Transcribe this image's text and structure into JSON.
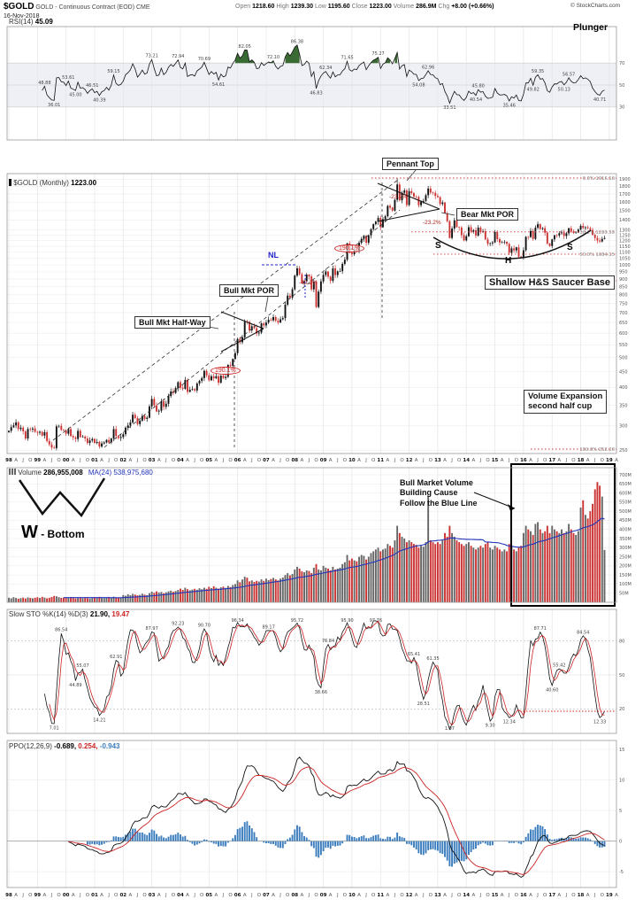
{
  "header": {
    "symbol": "$GOLD",
    "description": "GOLD - Continuous Contract (EOD) CME",
    "date": "16-Nov-2018",
    "open_label": "Open",
    "open": "1218.60",
    "high_label": "High",
    "high": "1239.30",
    "low_label": "Low",
    "low": "1195.60",
    "close_label": "Close",
    "close": "1223.00",
    "volume_label": "Volume",
    "volume": "286.9M",
    "chg_label": "Chg",
    "chg": "+8.00 (+0.66%)",
    "copyright": "© StockCharts.com",
    "author": "Plunger"
  },
  "panel_titles": {
    "rsi_label": "RSI(14)",
    "rsi_value": "45.09",
    "price_label": "$GOLD (Monthly)",
    "price_value": "1223.00",
    "volume_label": "Volume",
    "volume_value": "286,955,008",
    "volume_ma_label": "MA(24)",
    "volume_ma_value": "538,975,680",
    "sto_label": "Slow STO %K(14) %D(3)",
    "sto_k": "21.90,",
    "sto_d": "19.47",
    "ppo_label": "PPO(12,26,9)",
    "ppo_1": "-0.689,",
    "ppo_2": "0.254,",
    "ppo_3": "-0.943"
  },
  "annotations": {
    "pennant_top": "Pennant Top",
    "bear_mkt_por": "Bear Mkt POR",
    "bull_mkt_por": "Bull Mkt POR",
    "bull_mkt_halfway": "Bull Mkt Half-Way",
    "saucer_base": "Shallow H&S Saucer Base",
    "vol_exp_line1": "Volume Expansion",
    "vol_exp_line2": "second half cup",
    "bullvol_line1": "Bull Market Volume",
    "bullvol_line2": "Building Cause",
    "bullvol_line3": "Follow the Blue Line",
    "w_letter": "W",
    "w_rest": " - Bottom",
    "nl": "NL",
    "meas_1": "190.1%",
    "meas_2": "190.1%",
    "retr_1": "-23.2%",
    "retr_2": "-23.2%",
    "retr_3": "-40.2%",
    "s_left": "S",
    "head": "H",
    "s_right": "S"
  },
  "chart_data": [
    {
      "panel": "rsi",
      "type": "line",
      "label": "RSI(14)",
      "current": 45.09,
      "overbought": 70,
      "midline": 50,
      "oversold": 30,
      "yticks": [
        70,
        50,
        30
      ],
      "derived": "RSI(14) computed from the monthly closes of the price panel"
    },
    {
      "panel": "price",
      "type": "candlestick",
      "label": "$GOLD Monthly",
      "scale": "log",
      "frequency": "monthly",
      "start": "1998-01",
      "end": "2018-11",
      "last_close": 1223.0,
      "closes": [
        289,
        297,
        301,
        308,
        293,
        296,
        288,
        273,
        293,
        292,
        294,
        287,
        285,
        287,
        279,
        286,
        268,
        261,
        255,
        254,
        299,
        300,
        291,
        290,
        283,
        293,
        278,
        275,
        272,
        289,
        276,
        277,
        273,
        264,
        269,
        272,
        264,
        266,
        257,
        263,
        265,
        270,
        265,
        273,
        293,
        278,
        274,
        276,
        282,
        296,
        301,
        308,
        326,
        318,
        304,
        312,
        323,
        316,
        319,
        347,
        367,
        350,
        334,
        336,
        361,
        346,
        354,
        375,
        388,
        384,
        398,
        416,
        399,
        396,
        423,
        387,
        393,
        395,
        391,
        412,
        420,
        429,
        453,
        438,
        422,
        435,
        428,
        435,
        414,
        437,
        429,
        433,
        473,
        470,
        495,
        517,
        575,
        561,
        582,
        654,
        653,
        613,
        632,
        623,
        599,
        603,
        646,
        636,
        650,
        664,
        661,
        677,
        659,
        650,
        666,
        672,
        743,
        795,
        783,
        834,
        923,
        975,
        933,
        871,
        885,
        930,
        918,
        833,
        884,
        730,
        819,
        884,
        928,
        952,
        916,
        888,
        975,
        927,
        953,
        955,
        1008,
        1040,
        1175,
        1096,
        1083,
        1118,
        1113,
        1180,
        1215,
        1244,
        1181,
        1248,
        1307,
        1357,
        1383,
        1421,
        1327,
        1409,
        1439,
        1556,
        1536,
        1502,
        1628,
        1826,
        1622,
        1715,
        1746,
        1566,
        1737,
        1711,
        1668,
        1664,
        1564,
        1604,
        1615,
        1685,
        1771,
        1719,
        1715,
        1676,
        1661,
        1578,
        1595,
        1472,
        1387,
        1224,
        1313,
        1396,
        1327,
        1323,
        1250,
        1202,
        1240,
        1326,
        1284,
        1296,
        1246,
        1322,
        1281,
        1287,
        1211,
        1171,
        1176,
        1184,
        1279,
        1213,
        1183,
        1184,
        1189,
        1171,
        1095,
        1132,
        1115,
        1141,
        1065,
        1060,
        1116,
        1234,
        1233,
        1290,
        1215,
        1321,
        1357,
        1309,
        1317,
        1273,
        1174,
        1152,
        1211,
        1248,
        1247,
        1268,
        1275,
        1242,
        1268,
        1316,
        1285,
        1271,
        1275,
        1303,
        1340,
        1318,
        1325,
        1316,
        1300,
        1253,
        1224,
        1201,
        1192,
        1215,
        1223
      ],
      "fib_retracement": {
        "high": 1916.1,
        "low": 252.2,
        "levels": [
          {
            "pct": "0.0%",
            "value": 1916.1
          },
          {
            "pct": "38.2%",
            "value": 1280.5
          },
          {
            "pct": "50.0%",
            "value": 1084.15
          },
          {
            "pct": "61.8%",
            "value": 887.82
          },
          {
            "pct": "100.0%",
            "value": 252.2
          }
        ]
      },
      "yticks": [
        250,
        300,
        350,
        400,
        450,
        500,
        550,
        600,
        650,
        700,
        750,
        800,
        850,
        900,
        950,
        1000,
        1050,
        1100,
        1150,
        1200,
        1250,
        1300,
        1400,
        1500,
        1600,
        1700,
        1800,
        1900
      ]
    },
    {
      "panel": "volume",
      "type": "bar",
      "label": "Volume",
      "current": 286955008,
      "ma24_current": 538975680,
      "volumes_millions": [
        25,
        22,
        28,
        24,
        20,
        23,
        26,
        21,
        27,
        24,
        22,
        25,
        28,
        24,
        30,
        26,
        22,
        25,
        29,
        35,
        33,
        28,
        24,
        26,
        26,
        23,
        28,
        24,
        21,
        24,
        27,
        22,
        26,
        23,
        21,
        24,
        28,
        25,
        30,
        26,
        23,
        26,
        29,
        24,
        31,
        26,
        24,
        27,
        40,
        36,
        44,
        39,
        46,
        42,
        38,
        41,
        47,
        42,
        39,
        50,
        58,
        52,
        60,
        54,
        57,
        50,
        55,
        60,
        64,
        58,
        62,
        68,
        75,
        68,
        80,
        72,
        66,
        70,
        74,
        69,
        77,
        72,
        80,
        74,
        85,
        78,
        88,
        80,
        75,
        82,
        86,
        79,
        90,
        84,
        95,
        100,
        120,
        110,
        125,
        140,
        135,
        115,
        120,
        112,
        118,
        114,
        126,
        118,
        130,
        122,
        128,
        134,
        126,
        120,
        130,
        136,
        150,
        160,
        148,
        156,
        180,
        195,
        185,
        170,
        165,
        175,
        172,
        160,
        190,
        210,
        180,
        175,
        200,
        190,
        185,
        175,
        195,
        180,
        185,
        190,
        210,
        220,
        260,
        230,
        240,
        230,
        225,
        250,
        260,
        255,
        235,
        250,
        270,
        280,
        290,
        300,
        280,
        290,
        295,
        320,
        310,
        300,
        340,
        420,
        380,
        360,
        350,
        330,
        340,
        330,
        320,
        315,
        300,
        310,
        305,
        330,
        585,
        340,
        330,
        320,
        330,
        320,
        340,
        380,
        360,
        420,
        380,
        360,
        340,
        330,
        320,
        310,
        320,
        330,
        310,
        300,
        290,
        300,
        310,
        300,
        320,
        330,
        300,
        290,
        310,
        300,
        290,
        280,
        290,
        280,
        320,
        310,
        290,
        280,
        300,
        310,
        380,
        420,
        400,
        390,
        370,
        430,
        440,
        400,
        380,
        390,
        420,
        380,
        420,
        400,
        390,
        380,
        400,
        380,
        390,
        430,
        400,
        380,
        370,
        390,
        520,
        560,
        480,
        460,
        500,
        540,
        620,
        660,
        640,
        580,
        287
      ],
      "yticks_millions": [
        50,
        100,
        150,
        200,
        250,
        300,
        350,
        400,
        450,
        500,
        550,
        600,
        650,
        700
      ]
    },
    {
      "panel": "sto",
      "type": "line",
      "label": "Slow STO %K(14) %D(3)",
      "k_current": 21.9,
      "d_current": 19.47,
      "yticks": [
        80,
        50,
        20
      ],
      "derived": "Slow Stochastic %K(14) smoothed 3 with %D(3), from price panel data"
    },
    {
      "panel": "ppo",
      "type": "line_histogram",
      "label": "PPO(12,26,9)",
      "ppo_current": -0.689,
      "signal_current": 0.254,
      "hist_current": -0.943,
      "derived": "PPO(12,26,9) line, red signal line and blue histogram from price panel closes"
    }
  ],
  "colors": {
    "candle_up": "#111111",
    "candle_down": "#cc3333",
    "volume_up": "#666666",
    "volume_down": "#cc3333",
    "ma_blue": "#2233bb",
    "signal_red": "#cc2222",
    "hist_blue": "#3b7dbd",
    "fib_red": "#cc3333",
    "rsi_fill_green": "#3a6b35",
    "annotation_blue": "#2222cc"
  },
  "xaxis": {
    "start_year": 1998,
    "end_year": 2019,
    "month_labels": [
      "A",
      "J",
      "O"
    ]
  }
}
